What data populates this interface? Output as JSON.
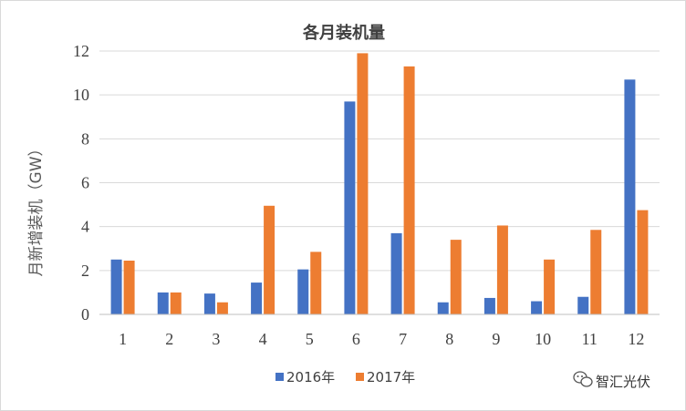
{
  "chart_data": {
    "type": "bar",
    "title": "各月装机量",
    "xlabel": "",
    "ylabel": "月新增装机（GW）",
    "categories": [
      "1",
      "2",
      "3",
      "4",
      "5",
      "6",
      "7",
      "8",
      "9",
      "10",
      "11",
      "12"
    ],
    "series": [
      {
        "name": "2016年",
        "color": "#4472c4",
        "values": [
          2.5,
          1.0,
          0.95,
          1.45,
          2.05,
          9.7,
          3.7,
          0.55,
          0.75,
          0.6,
          0.8,
          10.7
        ]
      },
      {
        "name": "2017年",
        "color": "#ed7d31",
        "values": [
          2.45,
          1.0,
          0.55,
          4.95,
          2.85,
          11.9,
          11.3,
          3.4,
          4.05,
          2.5,
          3.85,
          4.75
        ]
      }
    ],
    "ylim": [
      0,
      12
    ],
    "yticks": [
      0,
      2,
      4,
      6,
      8,
      10,
      12
    ],
    "grid": true,
    "legend": "bottom"
  },
  "watermark": {
    "text": "智汇光伏",
    "icon": "wechat-icon"
  }
}
